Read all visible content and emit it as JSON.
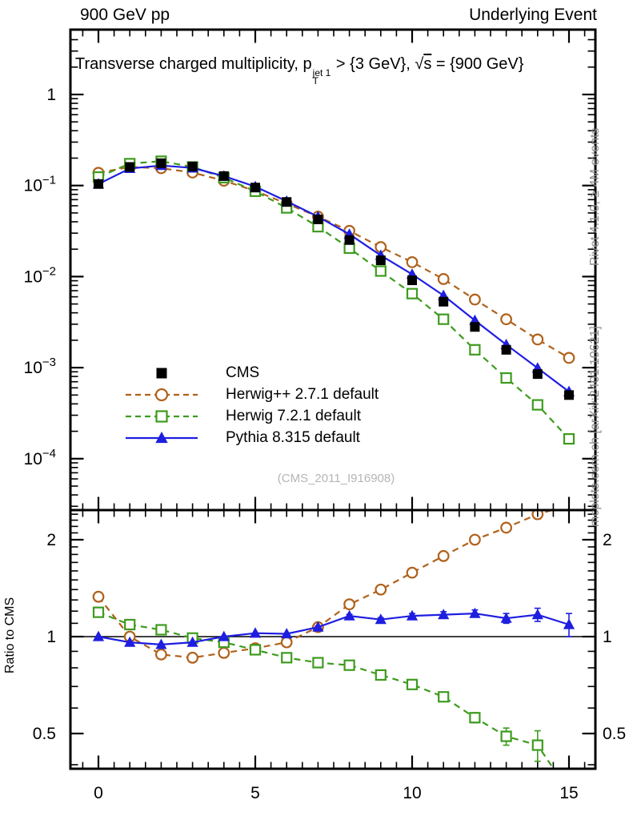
{
  "header": {
    "left": "900 GeV pp",
    "right": "Underlying Event"
  },
  "title": {
    "t1": "Transverse charged multiplicity, p",
    "sup": "jet 1",
    "sub": "T",
    "t2": " > {3 GeV}, ",
    "sqrt_sym": "√",
    "sqrt_arg": "s",
    "t3": " = {900 GeV}"
  },
  "watermark": "(CMS_2011_I916908)",
  "side_notes": {
    "top": "Rivet 4.1.0, ≥ 4M events",
    "bottom": "mcplots.cern.ch [arXiv:2401.10621]"
  },
  "colors": {
    "frame": "#000000",
    "note_gray": "#8f8f8f",
    "watermark_gray": "#b5b5b5"
  },
  "legend": [
    {
      "label": "CMS",
      "color": "#000000",
      "marker": "square-filled",
      "line": "none"
    },
    {
      "label": "Herwig++ 2.7.1 default",
      "color": "#b0621c",
      "marker": "circle-open",
      "line": "dashed"
    },
    {
      "label": "Herwig 7.2.1 default",
      "color": "#3e9b1e",
      "marker": "square-open",
      "line": "dashed"
    },
    {
      "label": "Pythia 8.315 default",
      "color": "#1e1ee0",
      "marker": "triangle-filled",
      "line": "solid"
    }
  ],
  "chart_data": {
    "type": "line",
    "title": "Transverse charged multiplicity, pT(jet 1) > {3 GeV}, sqrt(s) = {900 GeV}",
    "x": [
      0,
      1,
      2,
      3,
      4,
      5,
      6,
      7,
      8,
      9,
      10,
      11,
      12,
      13,
      14,
      15
    ],
    "xticks": [
      0,
      5,
      10,
      15
    ],
    "xlim": [
      -0.9,
      15.85
    ],
    "main": {
      "yscale": "log",
      "ylim": [
        2.7e-05,
        5.2
      ],
      "ytick_exponents": [
        0,
        -1,
        -2,
        -3,
        -4
      ],
      "series": [
        {
          "name": "CMS",
          "values": [
            0.104,
            0.16,
            0.176,
            0.162,
            0.127,
            0.095,
            0.066,
            0.0425,
            0.0252,
            0.0151,
            0.0091,
            0.0053,
            0.0028,
            0.00157,
            0.00085,
            0.0005
          ]
        },
        {
          "name": "Herwig++ 2.7.1 default",
          "values": [
            0.138,
            0.16,
            0.155,
            0.139,
            0.113,
            0.0874,
            0.0634,
            0.0455,
            0.0318,
            0.0211,
            0.0144,
            0.0094,
            0.0056,
            0.0034,
            0.00204,
            0.00128
          ]
        },
        {
          "name": "Herwig 7.2.1 default",
          "values": [
            0.124,
            0.174,
            0.185,
            0.16,
            0.122,
            0.0865,
            0.0568,
            0.0353,
            0.0205,
            0.0115,
            0.0065,
            0.0034,
            0.00157,
            0.00077,
            0.00039,
            0.000165
          ]
        },
        {
          "name": "Pythia 8.315 default",
          "values": [
            0.104,
            0.154,
            0.166,
            0.156,
            0.127,
            0.0974,
            0.0673,
            0.0455,
            0.0292,
            0.0171,
            0.0106,
            0.0062,
            0.0033,
            0.00179,
            0.00099,
            0.000545
          ]
        }
      ]
    },
    "ratio": {
      "ylabel": "Ratio to CMS",
      "yscale": "log",
      "ylim": [
        0.39,
        2.47
      ],
      "yticks": [
        0.5,
        1,
        2
      ],
      "reference": 1,
      "series": [
        {
          "name": "Herwig++ 2.7.1 default",
          "values": [
            1.33,
            1.0,
            0.88,
            0.86,
            0.89,
            0.92,
            0.96,
            1.07,
            1.26,
            1.4,
            1.58,
            1.78,
            2.0,
            2.18,
            2.4,
            2.56
          ],
          "errors": [
            0,
            0,
            0,
            0,
            0,
            0,
            0,
            0,
            0,
            0,
            0.015,
            0.02,
            0.03,
            0.05,
            0.08,
            0
          ]
        },
        {
          "name": "Herwig 7.2.1 default",
          "values": [
            1.19,
            1.09,
            1.05,
            0.99,
            0.96,
            0.91,
            0.86,
            0.83,
            0.815,
            0.76,
            0.71,
            0.65,
            0.56,
            0.49,
            0.46,
            0.33
          ],
          "errors": [
            0,
            0,
            0,
            0,
            0,
            0,
            0,
            0,
            0,
            0.01,
            0.01,
            0.015,
            0.02,
            0.03,
            0.05,
            0
          ]
        },
        {
          "name": "Pythia 8.315 default",
          "values": [
            1.0,
            0.96,
            0.945,
            0.96,
            1.0,
            1.025,
            1.02,
            1.07,
            1.16,
            1.13,
            1.16,
            1.17,
            1.18,
            1.14,
            1.17,
            1.09
          ],
          "errors": [
            0,
            0,
            0,
            0,
            0,
            0,
            0,
            0.01,
            0.012,
            0.015,
            0.02,
            0.025,
            0.03,
            0.04,
            0.055,
            0.09
          ]
        }
      ]
    }
  }
}
